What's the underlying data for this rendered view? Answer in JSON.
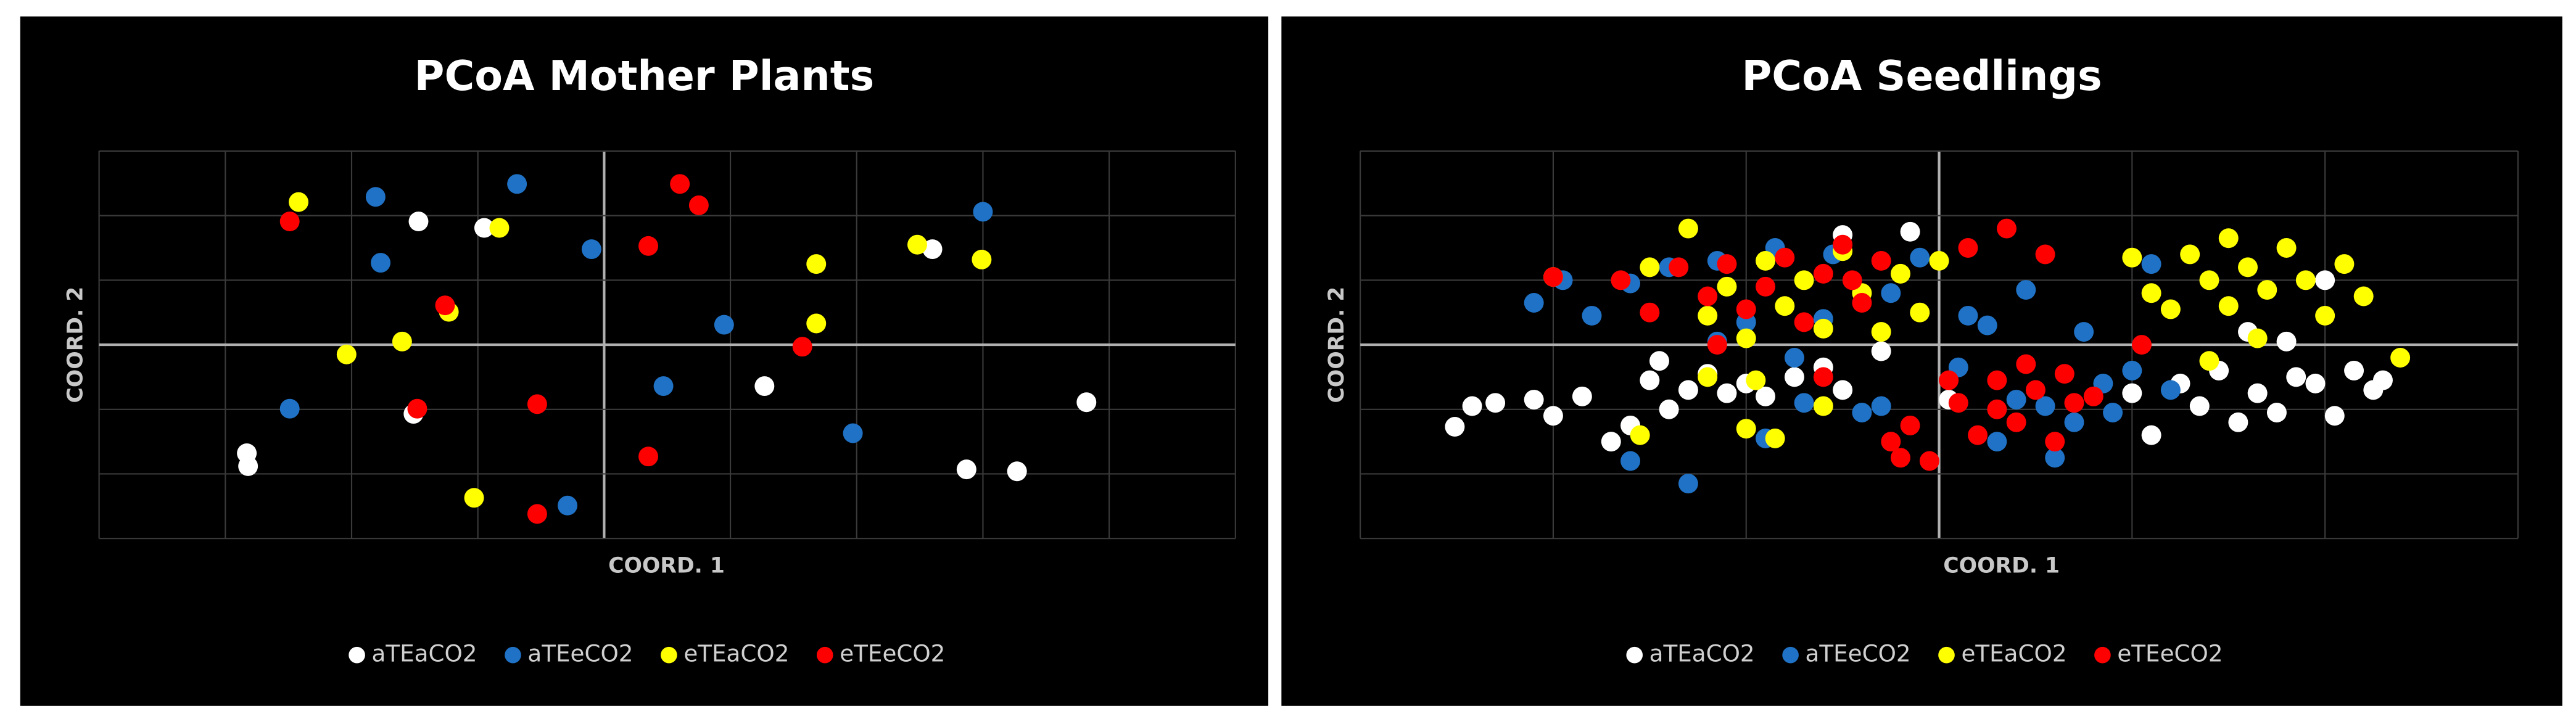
{
  "chart_data": [
    {
      "type": "scatter",
      "title": "PCoA Mother Plants",
      "x_label": "COORD. 1",
      "y_label": "COORD. 2",
      "xlim": [
        -4,
        5
      ],
      "ylim": [
        -3,
        3
      ],
      "xticks": [
        -4,
        -3,
        -2,
        -1,
        0,
        1,
        2,
        3,
        4,
        5
      ],
      "yticks": [
        -3,
        -2,
        -1,
        0,
        1,
        2,
        3
      ],
      "tick_labels": false,
      "grid": true,
      "legend": "bottom",
      "series": [
        {
          "name": "aTEaCO2",
          "color": "#ffffff",
          "x": [
            -2.83,
            -2.82,
            -1.47,
            -0.95,
            -1.51,
            1.27,
            2.6,
            2.87,
            3.27,
            3.82
          ],
          "values": [
            -1.68,
            -1.88,
            1.91,
            1.81,
            -1.07,
            -0.64,
            1.48,
            -1.93,
            -1.96,
            -0.89
          ]
        },
        {
          "name": "aTEeCO2",
          "color": "#1f72c6",
          "x": [
            -1.81,
            -0.69,
            -1.77,
            -0.1,
            -2.49,
            0.95,
            0.47,
            1.97,
            3.0,
            -0.29
          ],
          "values": [
            2.29,
            2.49,
            1.27,
            1.48,
            -0.99,
            0.31,
            -0.64,
            -1.37,
            2.06,
            -2.49
          ]
        },
        {
          "name": "eTEaCO2",
          "color": "#ffff00",
          "x": [
            -2.42,
            -0.83,
            1.68,
            2.48,
            2.99,
            1.68,
            -1.23,
            -1.6,
            -2.04,
            -1.03
          ],
          "values": [
            2.21,
            1.81,
            1.25,
            1.55,
            1.32,
            0.33,
            0.51,
            0.05,
            -0.15,
            -2.37
          ]
        },
        {
          "name": "eTEeCO2",
          "color": "#ff0000",
          "x": [
            -2.49,
            -1.26,
            -1.48,
            -0.53,
            0.35,
            0.6,
            0.75,
            1.57,
            0.35,
            -0.53
          ],
          "values": [
            1.91,
            0.61,
            -0.99,
            -0.92,
            1.53,
            2.49,
            2.16,
            -0.03,
            -1.73,
            -2.62
          ]
        }
      ]
    },
    {
      "type": "scatter",
      "title": "PCoA Seedlings",
      "x_label": "COORD. 1",
      "y_label": "COORD. 2",
      "xlim": [
        -3,
        3
      ],
      "ylim": [
        -3,
        3
      ],
      "xticks": [
        -3,
        -2,
        -1,
        0,
        1,
        2,
        3
      ],
      "yticks": [
        -3,
        -2,
        -1,
        0,
        1,
        2,
        3
      ],
      "tick_labels": false,
      "grid": true,
      "legend": "bottom",
      "series": [
        {
          "name": "aTEaCO2",
          "color": "#ffffff",
          "x": [
            -2.51,
            -2.42,
            -2.3,
            -2.1,
            -2.0,
            -1.85,
            -1.7,
            -1.6,
            -1.5,
            -1.4,
            -1.3,
            -1.2,
            -1.1,
            -1.0,
            -0.9,
            -0.75,
            -0.6,
            -0.5,
            -0.3,
            -0.15,
            0.05,
            1.0,
            1.1,
            1.25,
            1.35,
            1.45,
            1.55,
            1.65,
            1.75,
            1.85,
            1.95,
            2.05,
            2.15,
            2.25,
            2.3,
            1.6,
            1.8,
            2.0,
            -0.5,
            -1.45
          ],
          "values": [
            -1.27,
            -0.95,
            -0.9,
            -0.85,
            -1.1,
            -0.8,
            -1.5,
            -1.25,
            -0.55,
            -1.0,
            -0.7,
            -0.45,
            -0.75,
            -0.6,
            -0.8,
            -0.5,
            -0.35,
            -0.7,
            -0.1,
            1.75,
            -0.85,
            -0.75,
            -1.4,
            -0.6,
            -0.95,
            -0.4,
            -1.2,
            -0.75,
            -1.05,
            -0.5,
            -0.6,
            -1.1,
            -0.4,
            -0.7,
            -0.55,
            0.2,
            0.05,
            1.0,
            1.7,
            -0.25
          ]
        },
        {
          "name": "aTEeCO2",
          "color": "#1f72c6",
          "x": [
            -2.1,
            -1.95,
            -1.8,
            -1.6,
            -1.4,
            -1.15,
            -1.0,
            -0.85,
            -0.7,
            -0.55,
            -0.4,
            -0.25,
            -0.1,
            0.1,
            0.25,
            0.4,
            0.55,
            0.7,
            0.85,
            1.0,
            1.1,
            -1.3,
            -0.9,
            -0.6,
            -0.3,
            0.3,
            0.6,
            0.9,
            1.2,
            -1.6,
            -0.75,
            0.15,
            0.45,
            0.75,
            -1.15
          ],
          "values": [
            0.65,
            1.0,
            0.45,
            0.95,
            1.2,
            1.3,
            0.35,
            1.5,
            -0.9,
            1.4,
            -1.05,
            0.8,
            1.35,
            -0.35,
            0.3,
            -0.85,
            -0.95,
            -1.2,
            -0.6,
            -0.4,
            1.25,
            -2.15,
            -1.45,
            0.4,
            -0.95,
            -1.5,
            -1.75,
            -1.05,
            -0.7,
            -1.8,
            -0.2,
            0.45,
            0.85,
            0.2,
            0.05
          ]
        },
        {
          "name": "eTEaCO2",
          "color": "#ffff00",
          "x": [
            -2.0,
            -1.5,
            -1.3,
            -1.2,
            -1.1,
            -1.0,
            -0.9,
            -0.8,
            -0.7,
            -0.6,
            -0.5,
            -0.4,
            -0.3,
            -0.2,
            -0.1,
            0,
            -1.0,
            -0.85,
            -0.6,
            -1.2,
            1.0,
            1.1,
            1.2,
            1.3,
            1.4,
            1.5,
            1.6,
            1.7,
            1.8,
            1.9,
            2.0,
            2.1,
            2.2,
            2.39,
            1.65,
            1.5,
            1.4,
            -1.55,
            -0.95
          ],
          "values": [
            1.05,
            1.2,
            1.8,
            0.45,
            0.9,
            0.1,
            1.3,
            0.6,
            1.0,
            0.25,
            1.45,
            0.8,
            0.2,
            1.1,
            0.5,
            1.3,
            -1.3,
            -1.45,
            -0.95,
            -0.5,
            1.35,
            0.8,
            0.55,
            1.4,
            1.0,
            1.65,
            1.2,
            0.85,
            1.5,
            1.0,
            0.45,
            1.25,
            0.75,
            -0.2,
            0.1,
            0.6,
            -0.25,
            -1.4,
            -0.55
          ]
        },
        {
          "name": "eTEeCO2",
          "color": "#ff0000",
          "x": [
            -2.0,
            -1.65,
            -1.5,
            -1.35,
            -1.2,
            -1.1,
            -1.0,
            -0.9,
            -0.8,
            -0.7,
            -0.6,
            -0.5,
            -0.4,
            -0.3,
            -0.2,
            -0.05,
            0.1,
            0.2,
            0.3,
            0.4,
            0.5,
            0.6,
            0.7,
            0.8,
            -0.25,
            -0.15,
            0.05,
            0.15,
            0.35,
            0.55,
            0.65,
            0.3,
            0.45,
            -0.6,
            -1.15,
            -0.45,
            1.05
          ],
          "values": [
            1.05,
            1.0,
            0.5,
            1.2,
            0.75,
            1.25,
            0.55,
            0.9,
            1.35,
            0.35,
            1.1,
            1.55,
            0.65,
            1.3,
            -1.75,
            -1.8,
            -0.9,
            -1.4,
            -0.55,
            -1.2,
            -0.7,
            -1.5,
            -0.9,
            -0.8,
            -1.5,
            -1.25,
            -0.55,
            1.5,
            1.8,
            1.4,
            -0.45,
            -1.0,
            -0.3,
            -0.5,
            0,
            1.0,
            0
          ]
        }
      ]
    }
  ]
}
